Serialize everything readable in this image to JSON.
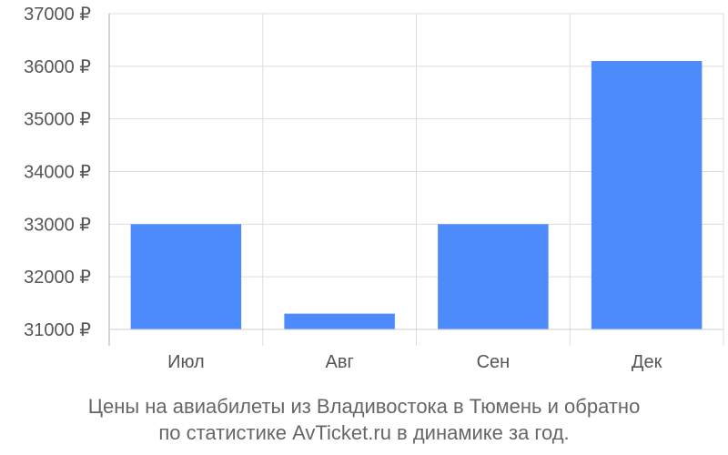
{
  "chart_data": {
    "type": "bar",
    "categories": [
      "Июл",
      "Авг",
      "Сен",
      "Дек"
    ],
    "values": [
      33000,
      31300,
      33000,
      36100
    ],
    "ylim": [
      31000,
      37000
    ],
    "yticks": [
      31000,
      32000,
      33000,
      34000,
      35000,
      36000,
      37000
    ],
    "tick_suffix": " ₽",
    "grid": true,
    "bar_color": "#4d8afc"
  },
  "caption": {
    "line1": "Цены на авиабилеты из Владивостока в Тюмень и обратно",
    "line2": "по статистике AvTicket.ru в динамике за год."
  }
}
